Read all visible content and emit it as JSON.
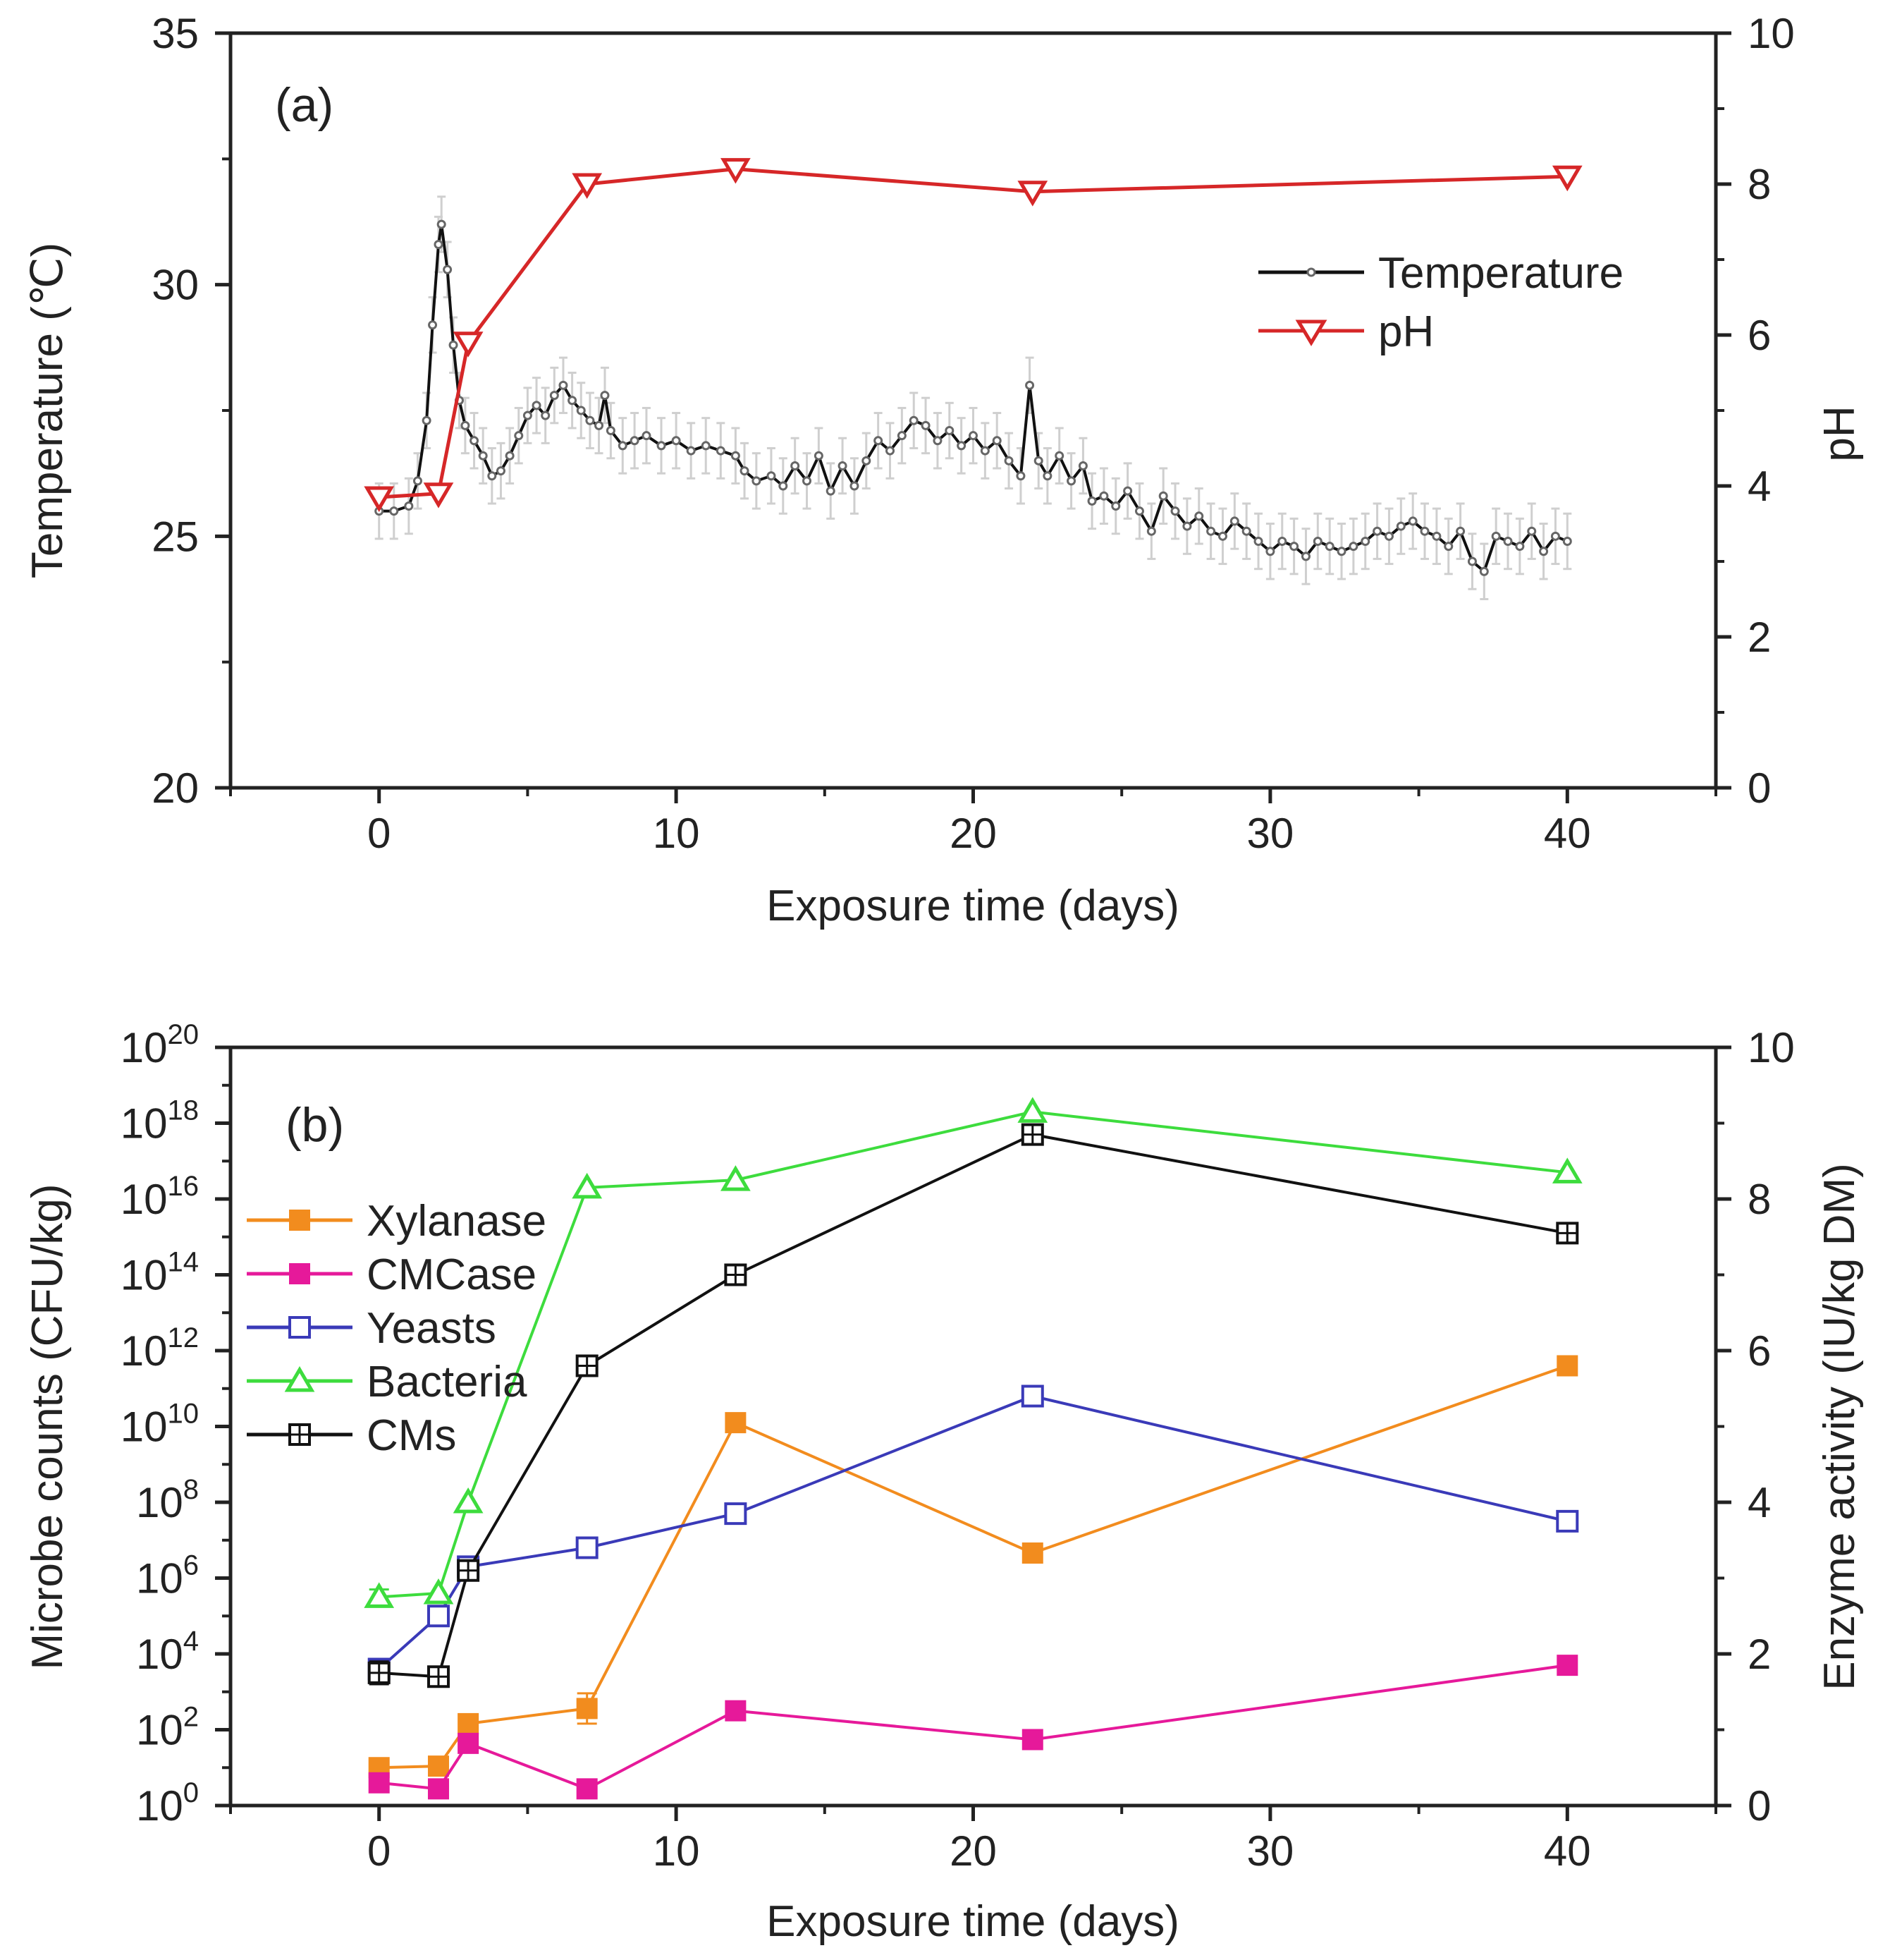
{
  "colors": {
    "axis": "#222222",
    "temperature": "#111111",
    "temp_marker": "#666666",
    "temp_error": "#cfcfcf",
    "ph": "#d62728",
    "xylanase": "#f28c1e",
    "cmcase": "#e6199a",
    "yeasts": "#3a3ab8",
    "bacteria": "#3ddc3d",
    "cms": "#111111"
  },
  "chart_data": [
    {
      "type": "line",
      "panel_label": "(a)",
      "xlabel": "Exposure time (days)",
      "ylabel": "Temperature (℃)",
      "y2label": "pH",
      "xlim": [
        -5,
        45
      ],
      "ylim": [
        20,
        35
      ],
      "y2lim": [
        0,
        10
      ],
      "xticks": [
        0,
        10,
        20,
        30,
        40
      ],
      "xtick_labels": [
        "0",
        "10",
        "20",
        "30",
        "40"
      ],
      "yticks": [
        20,
        25,
        30,
        35
      ],
      "ytick_labels": [
        "20",
        "25",
        "30",
        "35"
      ],
      "y2ticks": [
        0,
        2,
        4,
        6,
        8,
        10
      ],
      "y2tick_labels": [
        "0",
        "2",
        "4",
        "6",
        "8",
        "10"
      ],
      "legend": {
        "position": "top-right",
        "entries": [
          "Temperature",
          "pH"
        ]
      },
      "series": [
        {
          "name": "Temperature",
          "axis": "left",
          "key": "temperature",
          "x": [
            0,
            0.5,
            1,
            1.3,
            1.6,
            1.8,
            2,
            2.1,
            2.3,
            2.5,
            2.7,
            2.9,
            3.2,
            3.5,
            3.8,
            4.1,
            4.4,
            4.7,
            5,
            5.3,
            5.6,
            5.9,
            6.2,
            6.5,
            6.8,
            7.1,
            7.4,
            7.6,
            7.8,
            8.2,
            8.6,
            9,
            9.5,
            10,
            10.5,
            11,
            11.5,
            12,
            12.3,
            12.7,
            13.2,
            13.6,
            14,
            14.4,
            14.8,
            15.2,
            15.6,
            16,
            16.4,
            16.8,
            17.2,
            17.6,
            18,
            18.4,
            18.8,
            19.2,
            19.6,
            20,
            20.4,
            20.8,
            21.2,
            21.6,
            21.9,
            22.2,
            22.5,
            22.9,
            23.3,
            23.7,
            24,
            24.4,
            24.8,
            25.2,
            25.6,
            26,
            26.4,
            26.8,
            27.2,
            27.6,
            28,
            28.4,
            28.8,
            29.2,
            29.6,
            30,
            30.4,
            30.8,
            31.2,
            31.6,
            32,
            32.4,
            32.8,
            33.2,
            33.6,
            34,
            34.4,
            34.8,
            35.2,
            35.6,
            36,
            36.4,
            36.8,
            37.2,
            37.6,
            38,
            38.4,
            38.8,
            39.2,
            39.6,
            40
          ],
          "y": [
            25.5,
            25.5,
            25.6,
            26.1,
            27.3,
            29.2,
            30.8,
            31.2,
            30.3,
            28.8,
            27.7,
            27.2,
            26.9,
            26.6,
            26.2,
            26.3,
            26.6,
            27.0,
            27.4,
            27.6,
            27.4,
            27.8,
            28.0,
            27.7,
            27.5,
            27.3,
            27.2,
            27.8,
            27.1,
            26.8,
            26.9,
            27.0,
            26.8,
            26.9,
            26.7,
            26.8,
            26.7,
            26.6,
            26.3,
            26.1,
            26.2,
            26.0,
            26.4,
            26.1,
            26.6,
            25.9,
            26.4,
            26.0,
            26.5,
            26.9,
            26.7,
            27.0,
            27.3,
            27.2,
            26.9,
            27.1,
            26.8,
            27.0,
            26.7,
            26.9,
            26.5,
            26.2,
            28.0,
            26.5,
            26.2,
            26.6,
            26.1,
            26.4,
            25.7,
            25.8,
            25.6,
            25.9,
            25.5,
            25.1,
            25.8,
            25.5,
            25.2,
            25.4,
            25.1,
            25.0,
            25.3,
            25.1,
            24.9,
            24.7,
            24.9,
            24.8,
            24.6,
            24.9,
            24.8,
            24.7,
            24.8,
            24.9,
            25.1,
            25.0,
            25.2,
            25.3,
            25.1,
            25.0,
            24.8,
            25.1,
            24.5,
            24.3,
            25.0,
            24.9,
            24.8,
            25.1,
            24.7,
            25.0,
            24.9
          ],
          "error": 0.55
        },
        {
          "name": "pH",
          "axis": "right",
          "key": "ph",
          "marker": "open-triangle-down",
          "x": [
            0,
            2,
            3,
            7,
            12,
            22,
            40
          ],
          "y": [
            3.85,
            3.9,
            5.9,
            8.0,
            8.2,
            7.9,
            8.1
          ]
        }
      ]
    },
    {
      "type": "line",
      "panel_label": "(b)",
      "xlabel": "Exposure time (days)",
      "ylabel": "Microbe counts (CFU/kg)",
      "y2label": "Enzyme activity (IU/kg DM)",
      "xlim": [
        -5,
        45
      ],
      "ylim_log10": [
        0,
        20
      ],
      "y2lim": [
        0,
        10
      ],
      "xticks": [
        0,
        10,
        20,
        30,
        40
      ],
      "xtick_labels": [
        "0",
        "10",
        "20",
        "30",
        "40"
      ],
      "ytick_exponents": [
        0,
        2,
        4,
        6,
        8,
        10,
        12,
        14,
        16,
        18,
        20
      ],
      "ytick_exponent_labels": [
        "0",
        "2",
        "4",
        "6",
        "8",
        "10",
        "12",
        "14",
        "16",
        "18",
        "20"
      ],
      "ytick_base": "10",
      "y2ticks": [
        0,
        2,
        4,
        6,
        8,
        10
      ],
      "y2tick_labels": [
        "0",
        "2",
        "4",
        "6",
        "8",
        "10"
      ],
      "legend": {
        "position": "upper-left",
        "entries": [
          "Xylanase",
          "CMCase",
          "Yeasts",
          "Bacteria",
          "CMs"
        ]
      },
      "series": [
        {
          "name": "Xylanase",
          "axis": "right",
          "key": "xylanase",
          "marker": "filled-square",
          "x": [
            0,
            2,
            3,
            7,
            12,
            22,
            40
          ],
          "y": [
            0.5,
            0.52,
            1.08,
            1.28,
            5.05,
            3.33,
            5.8
          ],
          "error": [
            0,
            0,
            0,
            0.2,
            0,
            0,
            0
          ]
        },
        {
          "name": "CMCase",
          "axis": "right",
          "key": "cmcase",
          "marker": "filled-square",
          "x": [
            0,
            2,
            3,
            7,
            12,
            22,
            40
          ],
          "y": [
            0.3,
            0.22,
            0.82,
            0.22,
            1.25,
            0.87,
            1.85
          ],
          "error": [
            0,
            0,
            0.12,
            0,
            0,
            0,
            0
          ]
        },
        {
          "name": "Yeasts",
          "axis": "left-log",
          "key": "yeasts",
          "marker": "open-square",
          "x": [
            0,
            2,
            3,
            7,
            12,
            22,
            40
          ],
          "y": [
            3.6,
            5.0,
            6.3,
            6.8,
            7.7,
            10.8,
            7.5
          ],
          "error": [
            0.2,
            0,
            0,
            0,
            0,
            0,
            0
          ]
        },
        {
          "name": "Bacteria",
          "axis": "left-log",
          "key": "bacteria",
          "marker": "open-triangle-up",
          "x": [
            0,
            2,
            3,
            7,
            12,
            22,
            40
          ],
          "y": [
            5.5,
            5.6,
            8.0,
            16.3,
            16.5,
            18.3,
            16.7
          ],
          "error": [
            0.2,
            0,
            0,
            0,
            0,
            0,
            0
          ]
        },
        {
          "name": "CMs",
          "axis": "left-log",
          "key": "cms",
          "marker": "open-square-cross",
          "x": [
            0,
            2,
            3,
            7,
            12,
            22,
            40
          ],
          "y": [
            3.5,
            3.4,
            6.2,
            11.6,
            14.0,
            17.7,
            15.1
          ],
          "error": [
            0.3,
            0,
            0.2,
            0,
            0,
            0,
            0
          ]
        }
      ]
    }
  ]
}
